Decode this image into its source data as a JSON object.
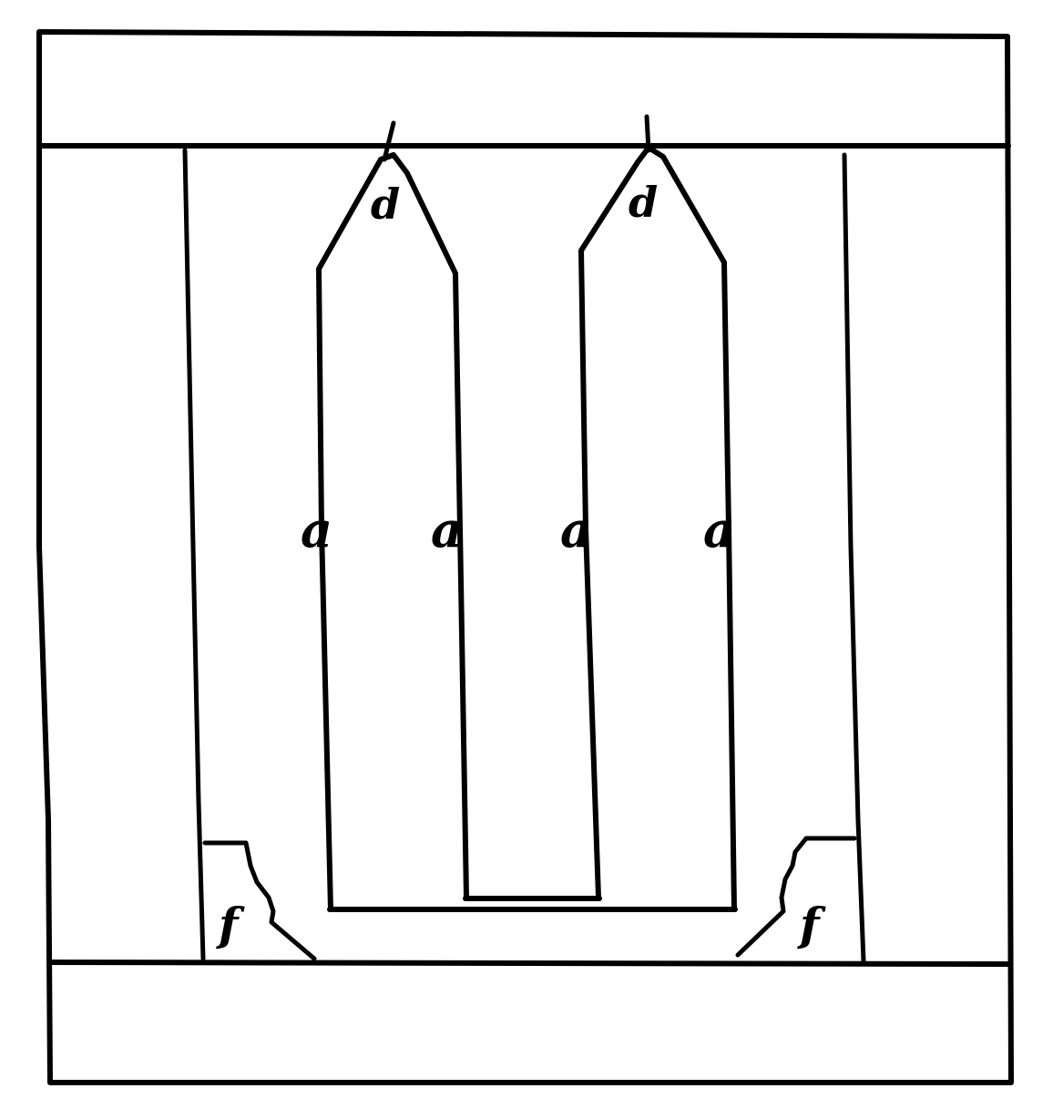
{
  "labels": {
    "top_left": "d",
    "top_right": "d",
    "pole_1": "a",
    "pole_2": "a",
    "pole_3": "a",
    "pole_4": "a",
    "bottom_left": "f",
    "bottom_right": "f"
  },
  "colors": {
    "ink": "#000000",
    "paper": "#ffffff"
  }
}
